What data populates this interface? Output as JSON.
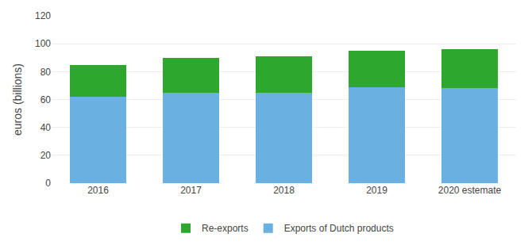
{
  "chart_data": {
    "type": "bar",
    "stacked": true,
    "categories": [
      "2016",
      "2017",
      "2018",
      "2019",
      "2020 estemate"
    ],
    "series": [
      {
        "name": "Exports of Dutch products",
        "color": "#6ab0e0",
        "values": [
          62,
          65,
          65,
          69,
          68
        ]
      },
      {
        "name": "Re-exports",
        "color": "#2da82d",
        "values": [
          23,
          25,
          26,
          26,
          28
        ]
      }
    ],
    "ylabel": "euros (billions)",
    "ylim": [
      0,
      120
    ],
    "yticks": [
      0,
      20,
      40,
      60,
      80,
      100,
      120
    ],
    "grid": true,
    "legend": "bottom"
  }
}
